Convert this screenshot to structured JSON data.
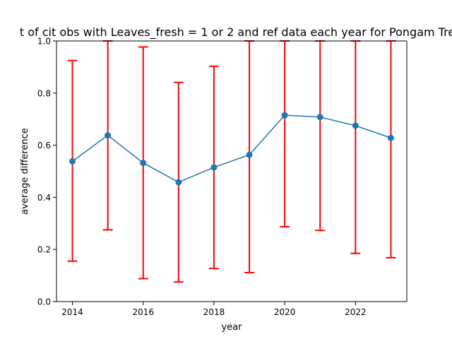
{
  "chart_data": {
    "type": "line",
    "title": "t of cit obs with Leaves_fresh = 1 or 2 and ref data each year for Pongam Tre",
    "xlabel": "year",
    "ylabel": "average difference",
    "xlim": [
      2013.55,
      2023.45
    ],
    "ylim": [
      0.0,
      1.0
    ],
    "x_ticks": [
      2014,
      2016,
      2018,
      2020,
      2022
    ],
    "x_tick_labels": [
      "2014",
      "2016",
      "2018",
      "2020",
      "2022"
    ],
    "y_ticks": [
      0.0,
      0.2,
      0.4,
      0.6,
      0.8,
      1.0
    ],
    "y_tick_labels": [
      "0.0",
      "0.2",
      "0.4",
      "0.6",
      "0.8",
      "1.0"
    ],
    "grid": false,
    "legend": "none",
    "series": [
      {
        "x": [
          2014,
          2015,
          2016,
          2017,
          2018,
          2019,
          2020,
          2021,
          2022,
          2023
        ],
        "values": [
          0.538,
          0.638,
          0.532,
          0.458,
          0.515,
          0.563,
          0.715,
          0.708,
          0.675,
          0.628
        ],
        "error_low": [
          0.155,
          0.275,
          0.088,
          0.075,
          0.127,
          0.111,
          0.287,
          0.273,
          0.185,
          0.168
        ],
        "error_high": [
          0.925,
          1.0,
          0.977,
          0.841,
          0.903,
          1.0,
          1.0,
          1.0,
          1.0,
          1.0
        ],
        "color": "#1f77b4",
        "error_color": "#ff0000"
      }
    ]
  }
}
